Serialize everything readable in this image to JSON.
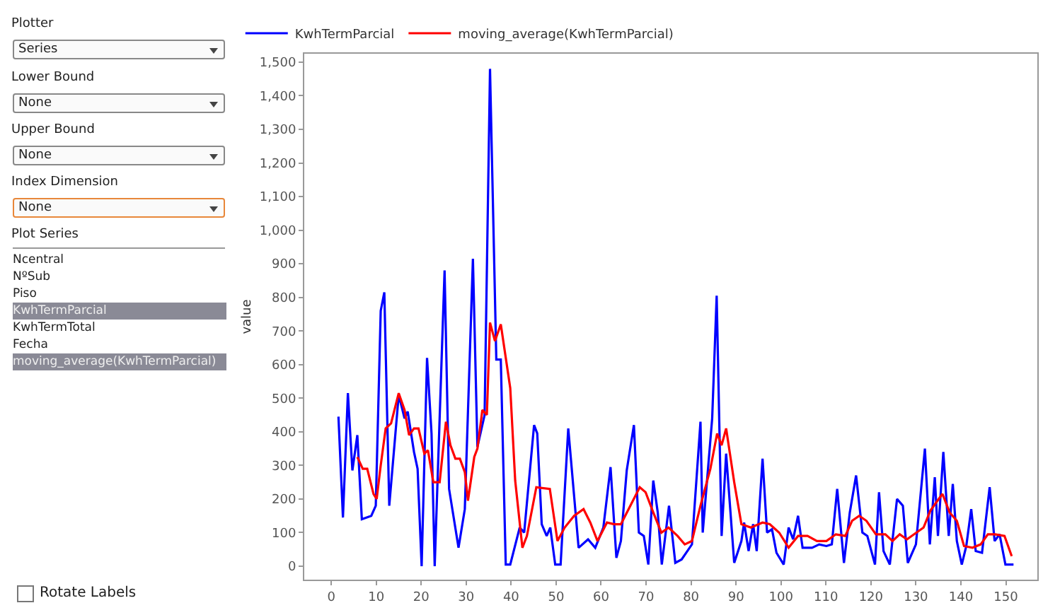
{
  "chart_data": {
    "type": "line",
    "ylabel": "value",
    "xlim": [
      -6,
      157
    ],
    "ylim": [
      -40,
      1525
    ],
    "xticks": [
      0,
      10,
      20,
      30,
      40,
      50,
      60,
      70,
      80,
      90,
      100,
      110,
      120,
      130,
      140,
      150
    ],
    "yticks": [
      {
        "value": 0,
        "label": "0"
      },
      {
        "value": 100,
        "label": "100"
      },
      {
        "value": 200,
        "label": "200"
      },
      {
        "value": 300,
        "label": "300"
      },
      {
        "value": 400,
        "label": "400"
      },
      {
        "value": 500,
        "label": "500"
      },
      {
        "value": 600,
        "label": "600"
      },
      {
        "value": 700,
        "label": "700"
      },
      {
        "value": 800,
        "label": "800"
      },
      {
        "value": 900,
        "label": "900"
      },
      {
        "value": 1000,
        "label": "1,000"
      },
      {
        "value": 1100,
        "label": "1,100"
      },
      {
        "value": 1200,
        "label": "1,200"
      },
      {
        "value": 1300,
        "label": "1,300"
      },
      {
        "value": 1400,
        "label": "1,400"
      },
      {
        "value": 1500,
        "label": "1,500"
      }
    ],
    "grid": false,
    "legend": "top left",
    "marker": "none",
    "line_style": "solid",
    "series": [
      {
        "name": "KwhTermParcial",
        "color": "#0000ff",
        "x": [
          1.6,
          2.6,
          3.7,
          4.7,
          5.8,
          6.8,
          8.9,
          9.9,
          11,
          11.8,
          12.9,
          15,
          16.3,
          17,
          18.4,
          19.2,
          20.1,
          21.3,
          22.3,
          23,
          25.2,
          26.2,
          28.3,
          29.7,
          31.5,
          32.5,
          34.1,
          35.3,
          36.7,
          37.7,
          38.8,
          39.8,
          41.9,
          42.9,
          45.1,
          45.8,
          46.8,
          47.9,
          48.7,
          49.8,
          51,
          52.7,
          55,
          57.1,
          58.7,
          60.5,
          62.1,
          63.4,
          64.4,
          65.7,
          67.3,
          68.4,
          69.5,
          70.5,
          71.6,
          72.6,
          73.5,
          75.1,
          76.5,
          77.9,
          80.2,
          82.1,
          82.6,
          84.7,
          85.7,
          86.8,
          87.8,
          89.6,
          91.2,
          91.8,
          92.8,
          93.8,
          94.6,
          95.9,
          96.9,
          98,
          99,
          100.6,
          101.7,
          102.7,
          103.8,
          104.8,
          106.9,
          108.5,
          110.1,
          111.3,
          112.5,
          114,
          115.3,
          116.7,
          118.1,
          119.2,
          120.9,
          121.8,
          122.8,
          124.2,
          125.8,
          127.1,
          128.2,
          130,
          132,
          133.1,
          134.2,
          134.9,
          136.1,
          137.3,
          138.2,
          139.1,
          140.2,
          141.2,
          142.3,
          143.3,
          144.7,
          146.4,
          147.5,
          148.6,
          149.9,
          151.7
        ],
        "values": [
          445,
          145,
          515,
          285,
          390,
          140,
          150,
          180,
          760,
          815,
          180,
          510,
          440,
          460,
          340,
          290,
          0,
          620,
          395,
          0,
          880,
          230,
          55,
          170,
          915,
          355,
          450,
          1480,
          615,
          615,
          5,
          5,
          115,
          100,
          420,
          395,
          125,
          90,
          115,
          5,
          5,
          410,
          55,
          80,
          55,
          115,
          295,
          25,
          75,
          285,
          420,
          100,
          90,
          5,
          255,
          160,
          5,
          180,
          10,
          20,
          65,
          430,
          100,
          440,
          805,
          90,
          335,
          10,
          75,
          130,
          45,
          125,
          45,
          320,
          100,
          110,
          40,
          5,
          115,
          80,
          150,
          55,
          55,
          65,
          60,
          65,
          230,
          10,
          160,
          270,
          100,
          90,
          5,
          220,
          45,
          5,
          200,
          180,
          10,
          65,
          350,
          65,
          265,
          90,
          340,
          90,
          245,
          75,
          5,
          60,
          170,
          45,
          40,
          235,
          75,
          95,
          5,
          5
        ]
      },
      {
        "name": "moving_average(KwhTermParcial)",
        "color": "#ff0000",
        "x": [
          5.8,
          7,
          8,
          9.4,
          10.1,
          11,
          12.1,
          13.3,
          15,
          16.3,
          17.3,
          18.4,
          19.4,
          20.7,
          21.5,
          22.7,
          24.1,
          25.5,
          26.5,
          27.6,
          28.6,
          29.7,
          30.4,
          31.8,
          32.5,
          33.6,
          34.6,
          35.3,
          36.4,
          37.7,
          39.8,
          40.9,
          42.5,
          43.5,
          45.6,
          48.6,
          50.3,
          51.9,
          54,
          56.1,
          57.6,
          59.2,
          61.3,
          62.9,
          64.4,
          66.5,
          68.6,
          69.9,
          71.6,
          73.4,
          75,
          77,
          78.6,
          80.2,
          82.1,
          84.3,
          85.8,
          86.8,
          87.8,
          89.6,
          91.2,
          93.3,
          95.9,
          97.5,
          99.6,
          101.7,
          103.8,
          105.9,
          108,
          110.1,
          112.2,
          114.3,
          115.8,
          117.4,
          119,
          121.1,
          123.2,
          124.8,
          126.4,
          128,
          130.1,
          131.7,
          133.2,
          134.8,
          135.9,
          137.5,
          139.1,
          140.7,
          142.6,
          144.4,
          146,
          147.6,
          149.7,
          151.3
        ],
        "values": [
          325,
          290,
          290,
          215,
          200,
          300,
          410,
          425,
          515,
          465,
          390,
          410,
          410,
          335,
          345,
          250,
          250,
          430,
          360,
          320,
          320,
          280,
          195,
          325,
          350,
          465,
          450,
          725,
          670,
          720,
          530,
          255,
          55,
          90,
          235,
          230,
          75,
          115,
          150,
          170,
          130,
          75,
          130,
          125,
          125,
          180,
          235,
          220,
          160,
          100,
          115,
          90,
          65,
          75,
          180,
          290,
          395,
          360,
          410,
          250,
          125,
          115,
          130,
          125,
          100,
          55,
          90,
          90,
          75,
          75,
          95,
          90,
          135,
          150,
          135,
          95,
          95,
          75,
          95,
          80,
          100,
          115,
          165,
          195,
          215,
          160,
          135,
          60,
          55,
          65,
          95,
          95,
          90,
          30
        ]
      }
    ],
    "annotations": [
      "Plotter",
      "Series",
      "Lower Bound",
      "None",
      "Upper Bound",
      "None",
      "Index Dimension",
      "None",
      "Plot Series",
      "Ncentral",
      "NºSub",
      "Piso",
      "KwhTermParcial",
      "KwhTermTotal",
      "Fecha",
      "moving_average(KwhTermParcial)",
      "Rotate Labels"
    ]
  }
}
